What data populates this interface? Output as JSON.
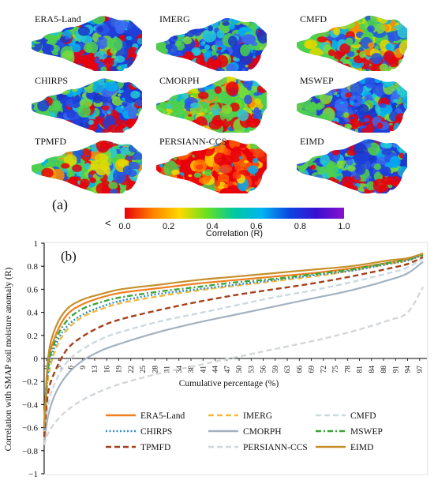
{
  "figure": {
    "panel_a_label": "(a)",
    "panel_b_label": "(b)",
    "maps": [
      {
        "title": "ERA5-Land",
        "palette": "blue"
      },
      {
        "title": "IMERG",
        "palette": "blue"
      },
      {
        "title": "CMFD",
        "palette": "mixed"
      },
      {
        "title": "CHIRPS",
        "palette": "blue"
      },
      {
        "title": "CMORPH",
        "palette": "green"
      },
      {
        "title": "MSWEP",
        "palette": "blue"
      },
      {
        "title": "TPMFD",
        "palette": "mixed"
      },
      {
        "title": "PERSIANN-CCS",
        "palette": "red"
      },
      {
        "title": "EIMD",
        "palette": "blue"
      }
    ],
    "colorbar": {
      "less_than": "<",
      "ticks": [
        "0.0",
        "0.2",
        "0.4",
        "0.6",
        "0.8",
        "1.0"
      ],
      "title": "Correlation (R)",
      "colors": [
        "#e8000b",
        "#ff7f00",
        "#ffd800",
        "#66e020",
        "#00c8a0",
        "#00b4f0",
        "#0a46e0",
        "#3a0fd0",
        "#8a10d0"
      ]
    }
  },
  "chart_data": {
    "type": "line",
    "ylabel": "Correlation with SMAP soil moisture anomaly (R)",
    "xlabel": "Cumulative percentage (%)",
    "ylim": [
      -1,
      1
    ],
    "yticks": [
      "1",
      "0.8",
      "0.6",
      "0.4",
      "0.2",
      "0",
      "−0.2",
      "−0.4",
      "−0.6",
      "−0.8",
      "−1"
    ],
    "xticks": [
      "0",
      "3",
      "6",
      "9",
      "13",
      "16",
      "19",
      "22",
      "25",
      "28",
      "31",
      "34",
      "38",
      "41",
      "44",
      "47",
      "50",
      "53",
      "56",
      "59",
      "63",
      "66",
      "69",
      "72",
      "75",
      "78",
      "81",
      "84",
      "88",
      "91",
      "94",
      "97"
    ],
    "x": [
      0,
      1,
      3,
      6,
      10,
      15,
      20,
      30,
      40,
      50,
      60,
      70,
      80,
      90,
      95,
      99
    ],
    "series": [
      {
        "name": "ERA5-Land",
        "color": "#f07f1e",
        "dash": "solid",
        "values": [
          -0.6,
          -0.05,
          0.2,
          0.38,
          0.47,
          0.53,
          0.57,
          0.61,
          0.65,
          0.68,
          0.71,
          0.74,
          0.78,
          0.83,
          0.86,
          0.9
        ]
      },
      {
        "name": "IMERG",
        "color": "#f6b93b",
        "dash": "dash",
        "values": [
          -0.65,
          -0.18,
          0.08,
          0.25,
          0.36,
          0.43,
          0.48,
          0.54,
          0.59,
          0.63,
          0.67,
          0.71,
          0.76,
          0.82,
          0.85,
          0.9
        ]
      },
      {
        "name": "CMFD",
        "color": "#ccd9df",
        "dash": "dash",
        "values": [
          -0.7,
          -0.4,
          -0.2,
          -0.03,
          0.08,
          0.17,
          0.23,
          0.32,
          0.39,
          0.46,
          0.53,
          0.59,
          0.66,
          0.74,
          0.79,
          0.87
        ]
      },
      {
        "name": "CHIRPS",
        "color": "#2e8ecf",
        "dash": "dot",
        "values": [
          -0.65,
          -0.12,
          0.12,
          0.28,
          0.38,
          0.45,
          0.5,
          0.56,
          0.6,
          0.64,
          0.68,
          0.72,
          0.76,
          0.82,
          0.85,
          0.9
        ]
      },
      {
        "name": "CMORPH",
        "color": "#a3b1c0",
        "dash": "solid",
        "values": [
          -0.75,
          -0.5,
          -0.3,
          -0.14,
          -0.02,
          0.07,
          0.13,
          0.23,
          0.31,
          0.38,
          0.45,
          0.52,
          0.59,
          0.68,
          0.74,
          0.84
        ]
      },
      {
        "name": "MSWEP",
        "color": "#3ea43a",
        "dash": "dashdot",
        "values": [
          -0.6,
          -0.08,
          0.16,
          0.33,
          0.43,
          0.49,
          0.53,
          0.58,
          0.62,
          0.66,
          0.69,
          0.73,
          0.77,
          0.83,
          0.86,
          0.9
        ]
      },
      {
        "name": "TPMFD",
        "color": "#a5401a",
        "dash": "dash",
        "values": [
          -0.68,
          -0.3,
          -0.1,
          0.08,
          0.19,
          0.28,
          0.34,
          0.42,
          0.49,
          0.55,
          0.6,
          0.65,
          0.71,
          0.78,
          0.82,
          0.88
        ]
      },
      {
        "name": "PERSIANN-CCS",
        "color": "#d3d7da",
        "dash": "dash",
        "values": [
          -0.75,
          -0.65,
          -0.55,
          -0.45,
          -0.36,
          -0.28,
          -0.22,
          -0.13,
          -0.06,
          0.01,
          0.08,
          0.15,
          0.23,
          0.33,
          0.4,
          0.62
        ]
      },
      {
        "name": "EIMD",
        "color": "#c5902a",
        "dash": "solid",
        "values": [
          -0.6,
          0.0,
          0.27,
          0.43,
          0.51,
          0.56,
          0.6,
          0.64,
          0.68,
          0.71,
          0.74,
          0.77,
          0.8,
          0.85,
          0.87,
          0.91
        ]
      }
    ],
    "legend_position": "bottom-center"
  }
}
